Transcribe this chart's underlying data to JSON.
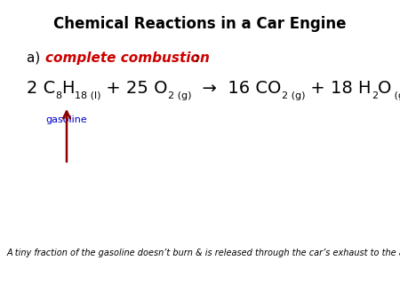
{
  "title": "Chemical Reactions in a Car Engine",
  "bg_color": "#ffffff",
  "title_fontsize": 12,
  "title_fontweight": "bold",
  "title_color": "#000000",
  "section_a_prefix": "a) ",
  "section_a_italic": "complete combustion",
  "section_a_suffix": ":",
  "section_a_color": "#cc0000",
  "gasoline_label": "gasoline",
  "gasoline_color": "#0000cc",
  "arrow_color": "#8b0000",
  "footnote": "A tiny fraction of the gasoline doesn’t burn & is released through the car’s exhaust to the atmosphere.",
  "footnote_fontsize": 7,
  "main_fs": 14,
  "sub_fs": 8
}
